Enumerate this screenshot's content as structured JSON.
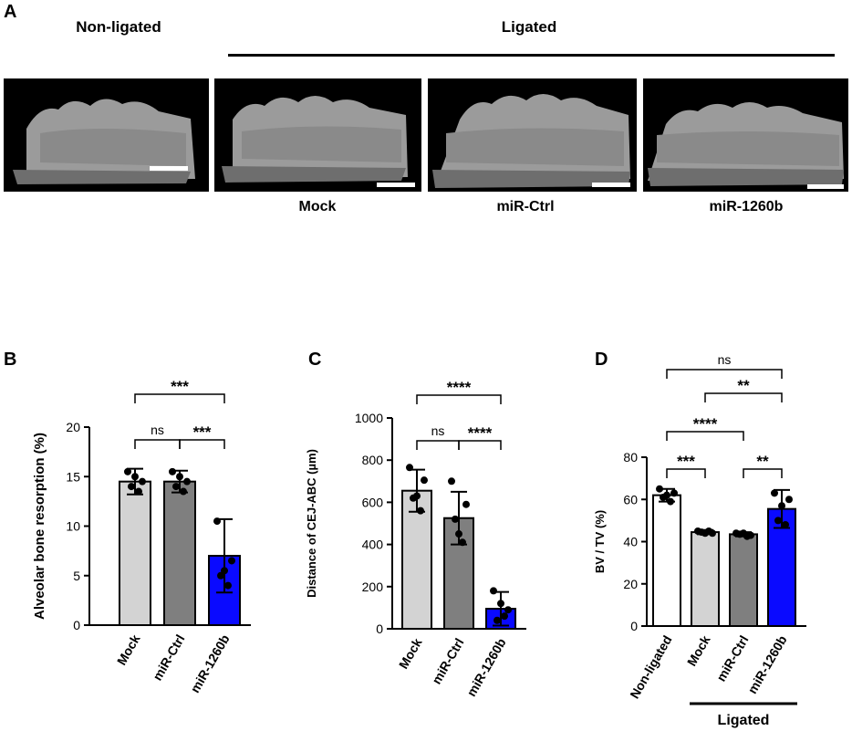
{
  "panelA": {
    "letter": "A",
    "header_nonligated": "Non-ligated",
    "header_ligated": "Ligated",
    "labels": [
      "Mock",
      "miR-Ctrl",
      "miR-1260b"
    ]
  },
  "chart_data": [
    {
      "letter": "B",
      "type": "bar",
      "ylabel": "Alveolar bone    resorption    (%)",
      "ylim": [
        0,
        20
      ],
      "yticks": [
        0,
        5,
        10,
        15,
        20
      ],
      "categories": [
        "Mock",
        "miR-Ctrl",
        "miR-1260b"
      ],
      "values": [
        14.5,
        14.5,
        7.0
      ],
      "errors": [
        1.3,
        1.1,
        3.7
      ],
      "points": [
        [
          15.5,
          14.5,
          14.0,
          13.5,
          15.0
        ],
        [
          15.5,
          14.5,
          14.0,
          13.5,
          15.0
        ],
        [
          10.5,
          6.5,
          5.0,
          4.0,
          5.5
        ]
      ],
      "colors": [
        "#d3d3d3",
        "#7f7f7f",
        "#0a0aff"
      ],
      "significance": [
        {
          "from": 0,
          "to": 1,
          "label": "ns"
        },
        {
          "from": 1,
          "to": 2,
          "label": "***"
        },
        {
          "from": 0,
          "to": 2,
          "label": "***"
        }
      ]
    },
    {
      "letter": "C",
      "type": "bar",
      "ylabel": "Distance of CEJ-ABC (µm)",
      "ylim": [
        0,
        1000
      ],
      "yticks": [
        0,
        200,
        400,
        600,
        800,
        1000
      ],
      "categories": [
        "Mock",
        "miR-Ctrl",
        "miR-1260b"
      ],
      "values": [
        655,
        525,
        95
      ],
      "errors": [
        100,
        125,
        80
      ],
      "points": [
        [
          765,
          705,
          620,
          560,
          630
        ],
        [
          700,
          590,
          520,
          410,
          450
        ],
        [
          180,
          90,
          40,
          60,
          120
        ]
      ],
      "colors": [
        "#d3d3d3",
        "#7f7f7f",
        "#0a0aff"
      ],
      "significance": [
        {
          "from": 0,
          "to": 1,
          "label": "ns"
        },
        {
          "from": 1,
          "to": 2,
          "label": "****"
        },
        {
          "from": 0,
          "to": 2,
          "label": "****"
        }
      ]
    },
    {
      "letter": "D",
      "type": "bar",
      "ylabel": "BV / TV (%)",
      "ylim": [
        0,
        80
      ],
      "yticks": [
        0,
        20,
        40,
        60,
        80
      ],
      "categories": [
        "Non-ligated",
        "Mock",
        "miR-Ctrl",
        "miR-1260b"
      ],
      "values": [
        62,
        44.5,
        43.5,
        55.5
      ],
      "errors": [
        3,
        1,
        1,
        9
      ],
      "points": [
        [
          65,
          63,
          61,
          59,
          62
        ],
        [
          45,
          44,
          44.5,
          45,
          44
        ],
        [
          44,
          43,
          43.5,
          42.5,
          44
        ],
        [
          63,
          60,
          50,
          48,
          57
        ]
      ],
      "colors": [
        "#ffffff",
        "#d3d3d3",
        "#7f7f7f",
        "#0a0aff"
      ],
      "significance": [
        {
          "from": 0,
          "to": 1,
          "label": "***"
        },
        {
          "from": 2,
          "to": 3,
          "label": "**"
        },
        {
          "from": 0,
          "to": 2,
          "label": "****"
        },
        {
          "from": 1,
          "to": 3,
          "label": "**"
        },
        {
          "from": 0,
          "to": 3,
          "label": "ns"
        }
      ],
      "group_label": "Ligated"
    }
  ]
}
